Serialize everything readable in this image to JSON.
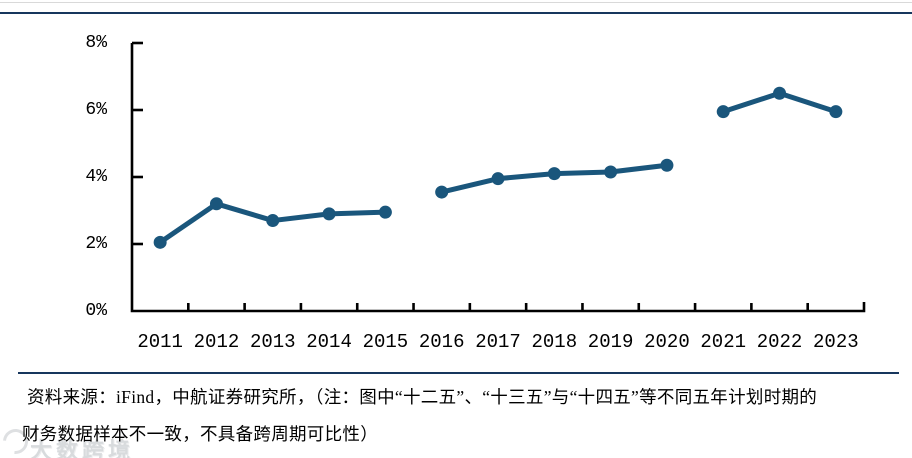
{
  "source_note": {
    "line1": "资料来源：iFind，中航证券研究所，（注：图中“十二五”、“十三五”与“十四五”等不同五年计划时期的",
    "line2": "财务数据样本不一致，不具备跨周期可比性）"
  },
  "watermark": {
    "text": "大数跨境",
    "icon": "circular-ring-logo"
  },
  "colors": {
    "line": "#1a567c",
    "axis": "#000000",
    "top_rule": "#17365d",
    "separator_rule": "#17365d",
    "top_light_rule": "#d9d9d9",
    "watermark": "#aab0b6"
  },
  "chart_data": {
    "type": "line",
    "title": "",
    "xlabel": "",
    "ylabel": "",
    "x": [
      "2011",
      "2012",
      "2013",
      "2014",
      "2015",
      "2016",
      "2017",
      "2018",
      "2019",
      "2020",
      "2021",
      "2022",
      "2023"
    ],
    "values": [
      2.05,
      3.2,
      2.7,
      2.9,
      2.95,
      3.55,
      3.95,
      4.1,
      4.15,
      4.35,
      5.95,
      6.5,
      5.95
    ],
    "unit": "%",
    "segments": [
      [
        0,
        4
      ],
      [
        5,
        9
      ],
      [
        10,
        12
      ]
    ],
    "segment_names": [
      "十二五",
      "十三五",
      "十四五"
    ],
    "ylim": [
      0,
      8
    ],
    "ytick_values": [
      8,
      6,
      4,
      2,
      0
    ],
    "ytick_labels": [
      "8%",
      "6%",
      "4%",
      "2%",
      "0%"
    ],
    "grid": false,
    "legend": "none",
    "marker": "circle",
    "gaps_after": [
      "2015",
      "2020"
    ]
  }
}
